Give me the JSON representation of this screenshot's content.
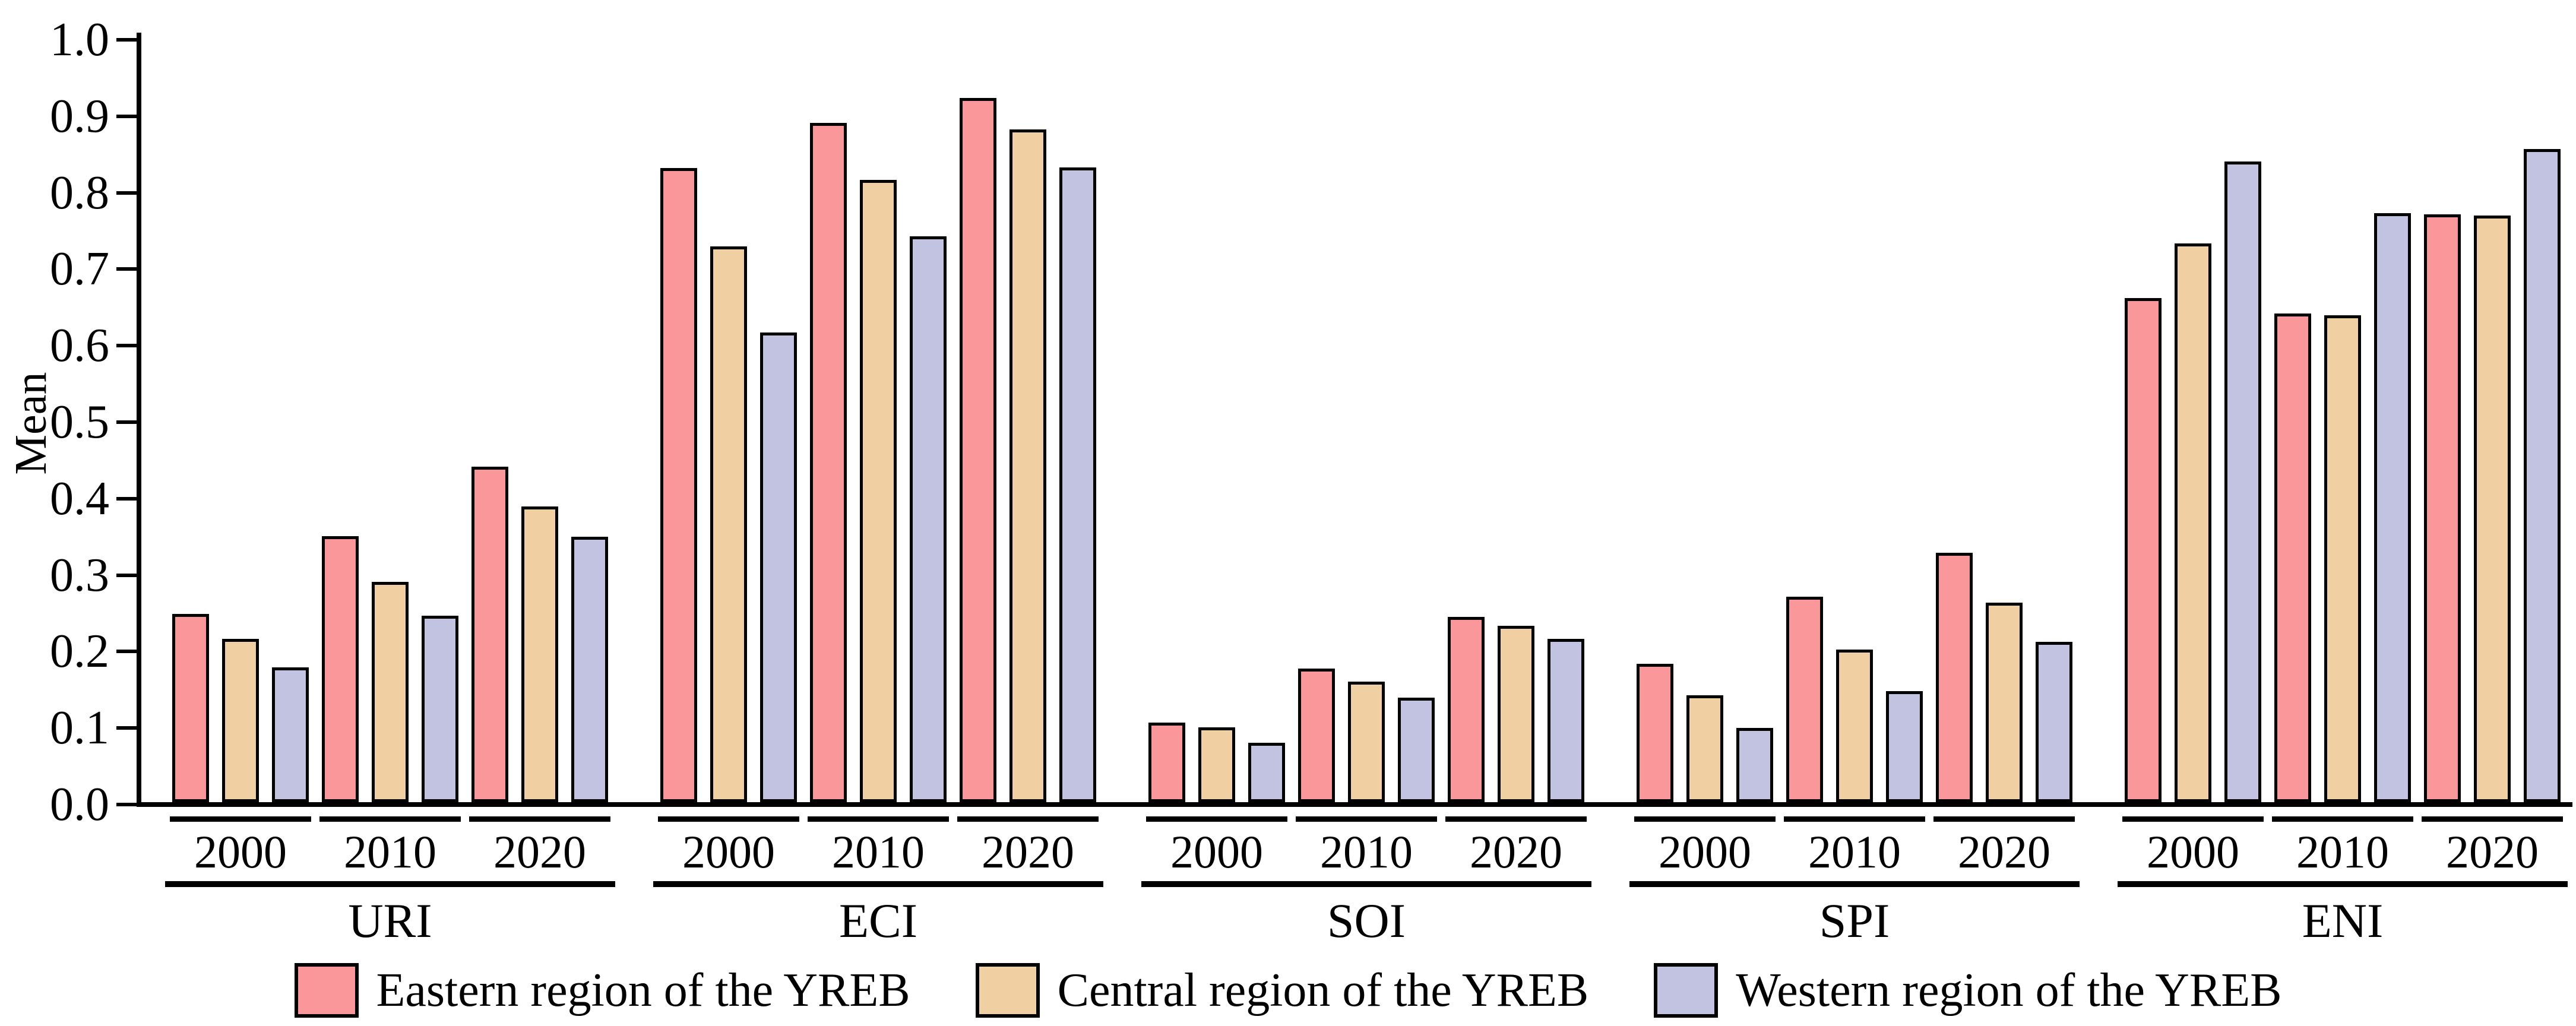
{
  "chart_data": {
    "type": "bar",
    "title": "",
    "ylabel": "Mean",
    "ylim": [
      0,
      1
    ],
    "ytick_labels": [
      "0.0",
      "0.1",
      "0.2",
      "0.3",
      "0.4",
      "0.5",
      "0.6",
      "0.7",
      "0.8",
      "0.9",
      "1.0"
    ],
    "grid": false,
    "legend_position": "bottom",
    "year_labels": [
      "2000",
      "2010",
      "2020"
    ],
    "series": [
      {
        "name": "Eastern region of the YREB",
        "key": "eastern",
        "color": "#F9979A"
      },
      {
        "name": "Central region of the YREB",
        "key": "central",
        "color": "#F0D0A3"
      },
      {
        "name": "Western region of the YREB",
        "key": "western",
        "color": "#C2C3E0"
      }
    ],
    "bar_outline_color": "#000000",
    "groups": [
      {
        "label": "URI",
        "values": [
          [
            0.242,
            0.21,
            0.172
          ],
          [
            0.344,
            0.284,
            0.24
          ],
          [
            0.435,
            0.383,
            0.343
          ]
        ]
      },
      {
        "label": "ECI",
        "values": [
          [
            0.825,
            0.723,
            0.61
          ],
          [
            0.884,
            0.81,
            0.736
          ],
          [
            0.917,
            0.876,
            0.826
          ]
        ]
      },
      {
        "label": "SOI",
        "values": [
          [
            0.1,
            0.094,
            0.074
          ],
          [
            0.171,
            0.154,
            0.133
          ],
          [
            0.238,
            0.227,
            0.21
          ]
        ]
      },
      {
        "label": "SPI",
        "values": [
          [
            0.177,
            0.136,
            0.093
          ],
          [
            0.265,
            0.196,
            0.141
          ],
          [
            0.322,
            0.257,
            0.206
          ]
        ]
      },
      {
        "label": "ENI",
        "values": [
          [
            0.655,
            0.727,
            0.834
          ],
          [
            0.635,
            0.633,
            0.766
          ],
          [
            0.765,
            0.763,
            0.85
          ]
        ]
      }
    ]
  },
  "colors": {
    "background": "#FFFFFF",
    "axis": "#000000",
    "text": "#000000"
  }
}
